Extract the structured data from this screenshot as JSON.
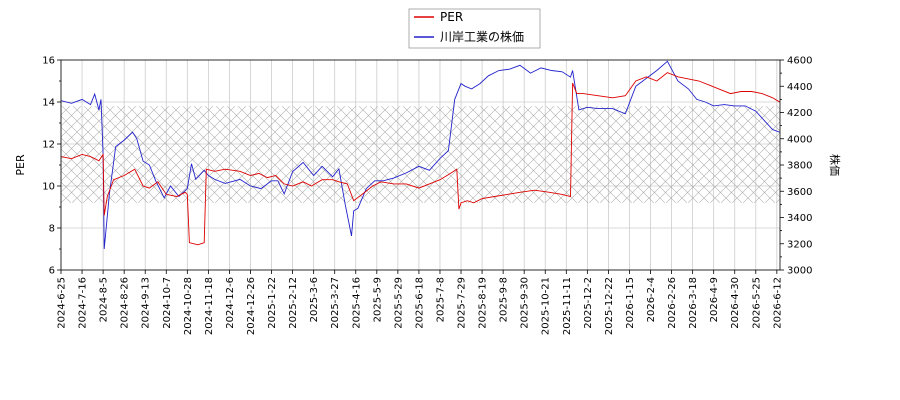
{
  "chart_data": {
    "type": "line",
    "legend_position": "top-center",
    "grid": true,
    "colors": {
      "per": "#dd0000",
      "price": "#2222cc",
      "band": "#999999"
    },
    "x_labels": [
      "2024-6-25",
      "2024-7-16",
      "2024-8-5",
      "2024-8-26",
      "2024-9-13",
      "2024-10-7",
      "2024-10-28",
      "2024-11-18",
      "2024-12-6",
      "2024-12-26",
      "2025-1-22",
      "2025-2-12",
      "2025-3-6",
      "2025-3-27",
      "2025-4-16",
      "2025-5-9",
      "2025-5-29",
      "2025-6-18",
      "2025-7-8",
      "2025-7-29",
      "2025-8-19",
      "2025-9-8",
      "2025-9-30",
      "2025-10-21",
      "2025-11-11",
      "2025-12-2",
      "2025-12-22",
      "2026-1-15",
      "2026-2-4",
      "2026-2-26",
      "2026-3-18",
      "2026-4-9",
      "2026-4-30",
      "2026-5-25",
      "2026-6-12"
    ],
    "y_left": {
      "label": "PER",
      "range": [
        6,
        16
      ],
      "ticks": [
        "6",
        "8",
        "10",
        "12",
        "14",
        "16"
      ]
    },
    "y_right": {
      "label": "株価",
      "range": [
        3000,
        4600
      ],
      "ticks": [
        "3000",
        "3200",
        "3400",
        "3600",
        "3800",
        "4000",
        "4200",
        "4400",
        "4600"
      ]
    },
    "band": {
      "low": 9.2,
      "high": 13.8
    },
    "series": [
      {
        "name": "PER",
        "axis": "left",
        "x": [
          0,
          0.5,
          1,
          1.4,
          1.8,
          2.0,
          2.05,
          2.2,
          2.5,
          3.0,
          3.5,
          3.9,
          4.2,
          4.6,
          5.0,
          5.5,
          5.9,
          6.0,
          6.1,
          6.5,
          6.8,
          6.9,
          7.3,
          7.8,
          8.5,
          9.0,
          9.4,
          9.8,
          10.2,
          10.6,
          11.0,
          11.5,
          11.9,
          12.4,
          12.9,
          13.2,
          13.6,
          13.9,
          14.3,
          14.8,
          15.2,
          15.8,
          16.4,
          17.0,
          17.5,
          18.0,
          18.5,
          18.8,
          18.9,
          19.0,
          19.3,
          19.6,
          20.0,
          20.6,
          21.2,
          21.8,
          22.5,
          23.2,
          23.8,
          24.2,
          24.3,
          24.5,
          24.8,
          25.5,
          26.2,
          26.8,
          27.3,
          27.8,
          28.3,
          28.8,
          29.3,
          29.8,
          30.3,
          30.8,
          31.3,
          31.8,
          32.3,
          32.8,
          33.3,
          33.8,
          34.3,
          35.0
        ],
        "y": [
          11.4,
          11.3,
          11.5,
          11.4,
          11.2,
          11.5,
          8.6,
          9.5,
          10.3,
          10.5,
          10.8,
          10.0,
          9.9,
          10.2,
          9.6,
          9.5,
          9.7,
          9.6,
          7.3,
          7.2,
          7.3,
          10.8,
          10.7,
          10.8,
          10.7,
          10.5,
          10.6,
          10.4,
          10.5,
          10.1,
          10.0,
          10.2,
          10.0,
          10.3,
          10.3,
          10.2,
          10.1,
          9.3,
          9.6,
          10.0,
          10.2,
          10.1,
          10.1,
          9.9,
          10.1,
          10.3,
          10.6,
          10.8,
          8.9,
          9.2,
          9.3,
          9.2,
          9.4,
          9.5,
          9.6,
          9.7,
          9.8,
          9.7,
          9.6,
          9.5,
          14.9,
          14.4,
          14.4,
          14.3,
          14.2,
          14.3,
          15.0,
          15.2,
          15.0,
          15.4,
          15.2,
          15.1,
          15.0,
          14.8,
          14.6,
          14.4,
          14.5,
          14.5,
          14.4,
          14.2,
          13.9,
          13.6
        ]
      },
      {
        "name": "川岸工業の株価",
        "axis": "right",
        "x": [
          0,
          0.5,
          1.0,
          1.4,
          1.6,
          1.8,
          1.9,
          2.0,
          2.05,
          2.3,
          2.6,
          3.0,
          3.4,
          3.6,
          3.9,
          4.2,
          4.5,
          4.9,
          5.2,
          5.6,
          6.0,
          6.2,
          6.4,
          6.8,
          7.0,
          7.3,
          7.8,
          8.5,
          9.0,
          9.5,
          10.0,
          10.3,
          10.6,
          11.0,
          11.5,
          12.0,
          12.4,
          12.9,
          13.2,
          13.5,
          13.8,
          13.9,
          14.1,
          14.5,
          14.9,
          15.3,
          15.8,
          16.4,
          17.0,
          17.5,
          18.0,
          18.4,
          18.7,
          19.0,
          19.2,
          19.5,
          19.9,
          20.3,
          20.8,
          21.3,
          21.8,
          22.3,
          22.8,
          23.3,
          23.8,
          24.2,
          24.3,
          24.6,
          25.0,
          25.5,
          26.2,
          26.8,
          27.3,
          27.8,
          28.3,
          28.8,
          29.3,
          29.8,
          30.2,
          30.6,
          31.0,
          31.5,
          32.0,
          32.5,
          33.0,
          33.4,
          33.8,
          34.3,
          35.0
        ],
        "y": [
          4290,
          4270,
          4300,
          4260,
          4340,
          4220,
          4300,
          3880,
          3160,
          3580,
          3940,
          3990,
          4050,
          4000,
          3830,
          3800,
          3680,
          3550,
          3640,
          3560,
          3620,
          3810,
          3690,
          3760,
          3720,
          3690,
          3660,
          3690,
          3640,
          3620,
          3680,
          3680,
          3580,
          3750,
          3820,
          3720,
          3790,
          3710,
          3770,
          3500,
          3260,
          3450,
          3470,
          3620,
          3680,
          3680,
          3700,
          3740,
          3790,
          3760,
          3850,
          3910,
          4300,
          4420,
          4400,
          4380,
          4420,
          4480,
          4520,
          4530,
          4560,
          4500,
          4540,
          4520,
          4510,
          4470,
          4520,
          4220,
          4240,
          4230,
          4230,
          4190,
          4400,
          4460,
          4520,
          4590,
          4440,
          4380,
          4300,
          4280,
          4250,
          4260,
          4250,
          4250,
          4210,
          4140,
          4070,
          4040,
          3920
        ]
      }
    ]
  }
}
